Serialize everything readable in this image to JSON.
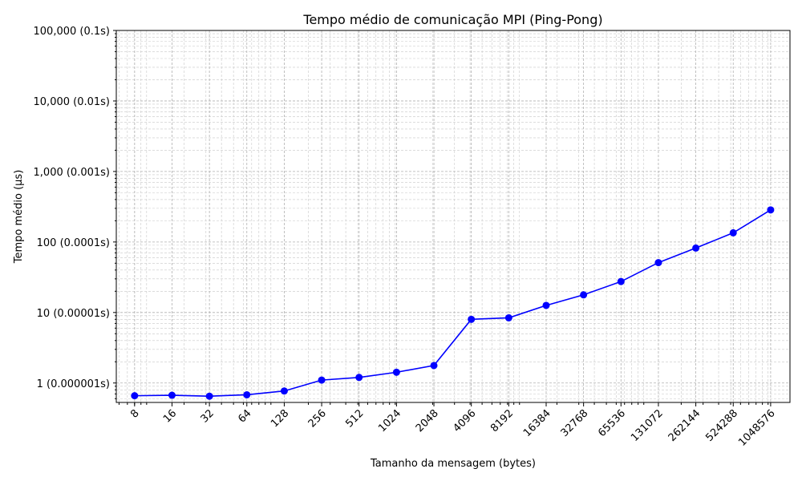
{
  "chart_data": {
    "type": "line",
    "title": "Tempo médio de comunicação MPI (Ping-Pong)",
    "xlabel": "Tamanho da mensagem (bytes)",
    "ylabel": "Tempo médio (µs)",
    "x_scale": "log2",
    "y_scale": "log10",
    "xlim": [
      5.7,
      1500000
    ],
    "ylim": [
      0.53,
      100000
    ],
    "grid": "major and minor, dashed",
    "x_ticks": [
      "8",
      "16",
      "32",
      "64",
      "128",
      "256",
      "512",
      "1024",
      "2048",
      "4096",
      "8192",
      "16384",
      "32768",
      "65536",
      "131072",
      "262144",
      "524288",
      "1048576"
    ],
    "y_ticks": [
      {
        "value": 1,
        "label": "1 (0.000001s)"
      },
      {
        "value": 10,
        "label": "10 (0.00001s)"
      },
      {
        "value": 100,
        "label": "100 (0.0001s)"
      },
      {
        "value": 1000,
        "label": "1,000 (0.001s)"
      },
      {
        "value": 10000,
        "label": "10,000 (0.01s)"
      },
      {
        "value": 100000,
        "label": "100,000 (0.1s)"
      }
    ],
    "series": [
      {
        "color": "#0000ff",
        "marker": "circle",
        "x": [
          8,
          16,
          32,
          64,
          128,
          256,
          512,
          1024,
          2048,
          4096,
          8192,
          16384,
          32768,
          65536,
          131072,
          262144,
          524288,
          1048576
        ],
        "y": [
          0.66,
          0.67,
          0.65,
          0.68,
          0.77,
          1.1,
          1.2,
          1.42,
          1.77,
          8.0,
          8.4,
          12.6,
          17.8,
          27.5,
          51.0,
          82.0,
          135.0,
          285.0
        ]
      }
    ]
  }
}
